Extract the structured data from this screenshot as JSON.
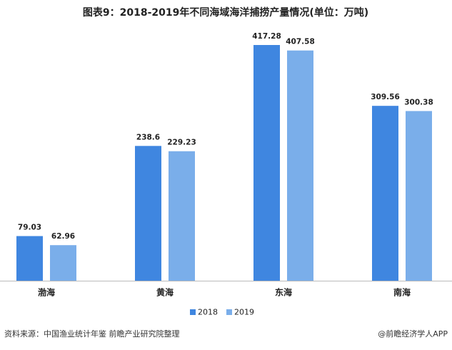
{
  "chart_data": {
    "type": "bar",
    "title": "图表9：2018-2019年不同海域海洋捕捞产量情况(单位：万吨)",
    "categories": [
      "渤海",
      "黄海",
      "东海",
      "南海"
    ],
    "series": [
      {
        "name": "2018",
        "color": "#3f86e0",
        "values": [
          79.03,
          238.6,
          417.28,
          309.56
        ]
      },
      {
        "name": "2019",
        "color": "#7aaeea",
        "values": [
          62.96,
          229.23,
          407.58,
          300.38
        ]
      }
    ],
    "legend": "bottom"
  },
  "source": "资料来源：中国渔业统计年鉴 前瞻产业研究院整理",
  "credit": "@前瞻经济学人APP"
}
